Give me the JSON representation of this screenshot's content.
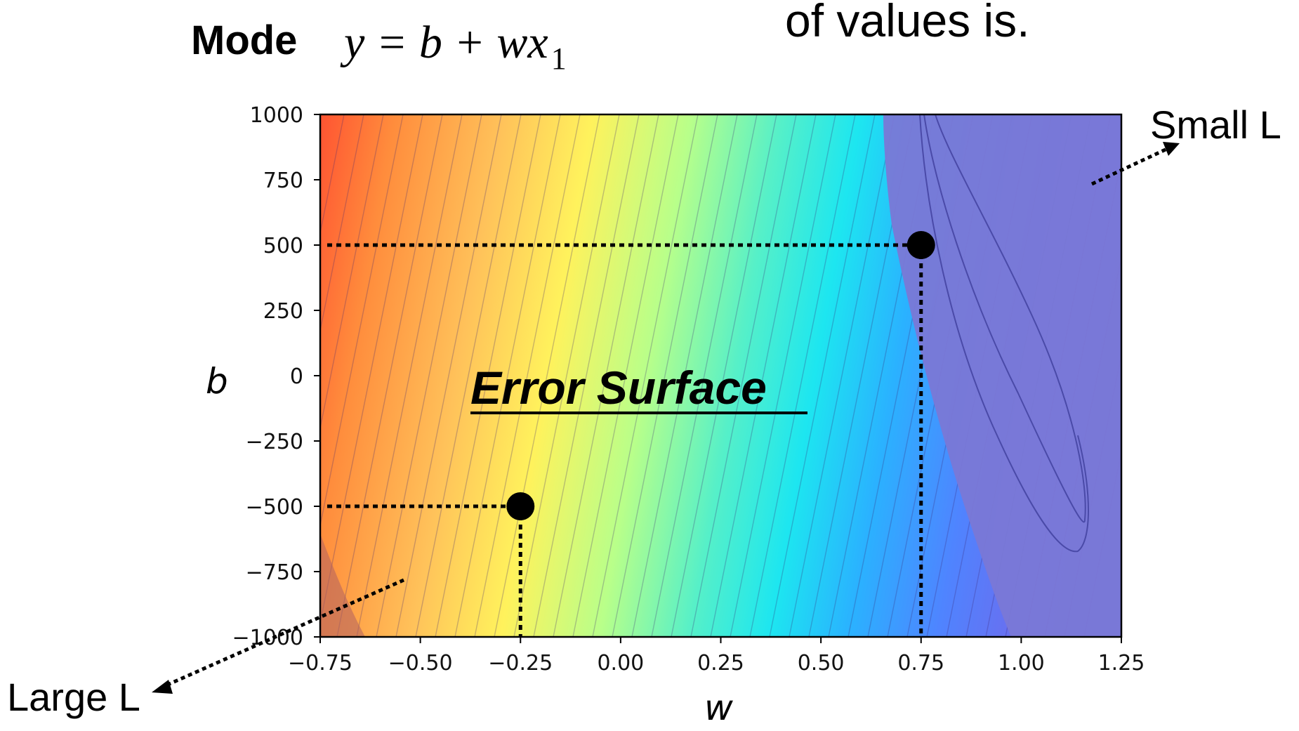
{
  "header": {
    "mode_label": "Mode",
    "formula_main": "y = b + wx",
    "formula_sub": "1",
    "top_text": "of values is."
  },
  "chart_data": {
    "type": "heatmap",
    "subtype": "filled-contour",
    "title": "Error Surface",
    "xlabel": "w",
    "ylabel": "b",
    "xlim": [
      -0.75,
      1.25
    ],
    "ylim": [
      -1000,
      1000
    ],
    "xticks": [
      -0.75,
      -0.5,
      -0.25,
      0.0,
      0.25,
      0.5,
      0.75,
      1.0,
      1.25
    ],
    "xtick_labels": [
      "−0.75",
      "−0.50",
      "−0.25",
      "0.00",
      "0.25",
      "0.50",
      "0.75",
      "1.00",
      "1.25"
    ],
    "yticks": [
      1000,
      750,
      500,
      250,
      0,
      -250,
      -500,
      -750,
      -1000
    ],
    "ytick_labels": [
      "1000",
      "750",
      "500",
      "250",
      "0",
      "−250",
      "−500",
      "−750",
      "−1000"
    ],
    "colormap": "jet",
    "points": [
      {
        "w": 0.75,
        "b": 500
      },
      {
        "w": -0.25,
        "b": -500
      }
    ],
    "annotations": {
      "small_loss": "Small L",
      "large_loss": "Large L"
    }
  }
}
